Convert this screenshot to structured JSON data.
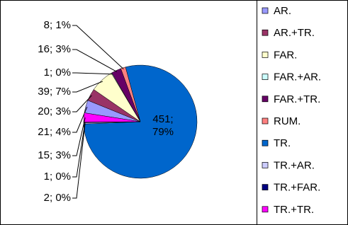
{
  "chart_data": {
    "type": "pie",
    "categories": [
      "AR.",
      "AR.+TR.",
      "FAR.",
      "FAR.+AR.",
      "FAR.+TR.",
      "RUM.",
      "TR.",
      "TR.+AR.",
      "TR.+FAR.",
      "TR.+TR."
    ],
    "values": [
      21,
      20,
      39,
      1,
      16,
      8,
      451,
      2,
      1,
      15
    ],
    "value_labels": [
      "21; 4%",
      "20; 3%",
      "39; 7%",
      "1; 0%",
      "16; 3%",
      "8; 1%",
      "451; 79%",
      "2; 0%",
      "1; 0%",
      "15; 3%"
    ],
    "colors": [
      "#9999ff",
      "#993366",
      "#ffffcc",
      "#ccffff",
      "#660066",
      "#ff8080",
      "#0066cc",
      "#ccccff",
      "#000080",
      "#ff00ff"
    ],
    "legend": "right"
  }
}
